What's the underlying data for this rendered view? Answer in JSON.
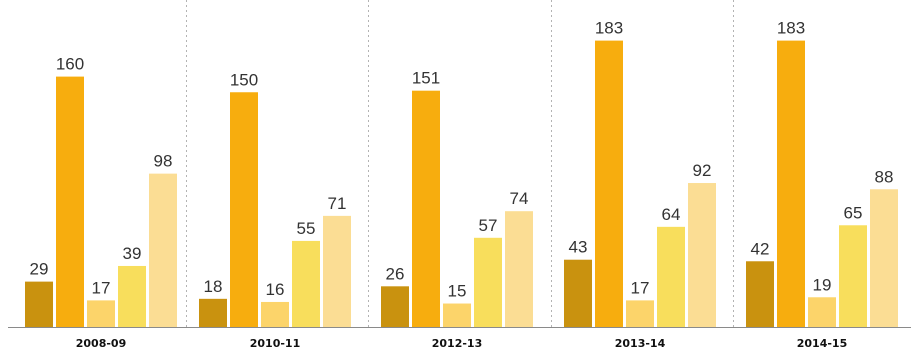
{
  "chart_data": {
    "type": "bar",
    "categories": [
      "2008-09",
      "2010-11",
      "2012-13",
      "2013-14",
      "2014-15"
    ],
    "series": [
      {
        "values": [
          29,
          18,
          26,
          43,
          42
        ],
        "color": "#c9920f"
      },
      {
        "values": [
          160,
          150,
          151,
          183,
          183
        ],
        "color": "#f7ad0e"
      },
      {
        "values": [
          17,
          16,
          15,
          17,
          19
        ],
        "color": "#fcd46a"
      },
      {
        "values": [
          39,
          55,
          57,
          64,
          65
        ],
        "color": "#f8de5c"
      },
      {
        "values": [
          98,
          71,
          74,
          92,
          88
        ],
        "color": "#fbdd94"
      }
    ],
    "ylim": [
      0,
      200
    ],
    "grid": false,
    "group_separators": "dotted",
    "data_labels": true
  }
}
